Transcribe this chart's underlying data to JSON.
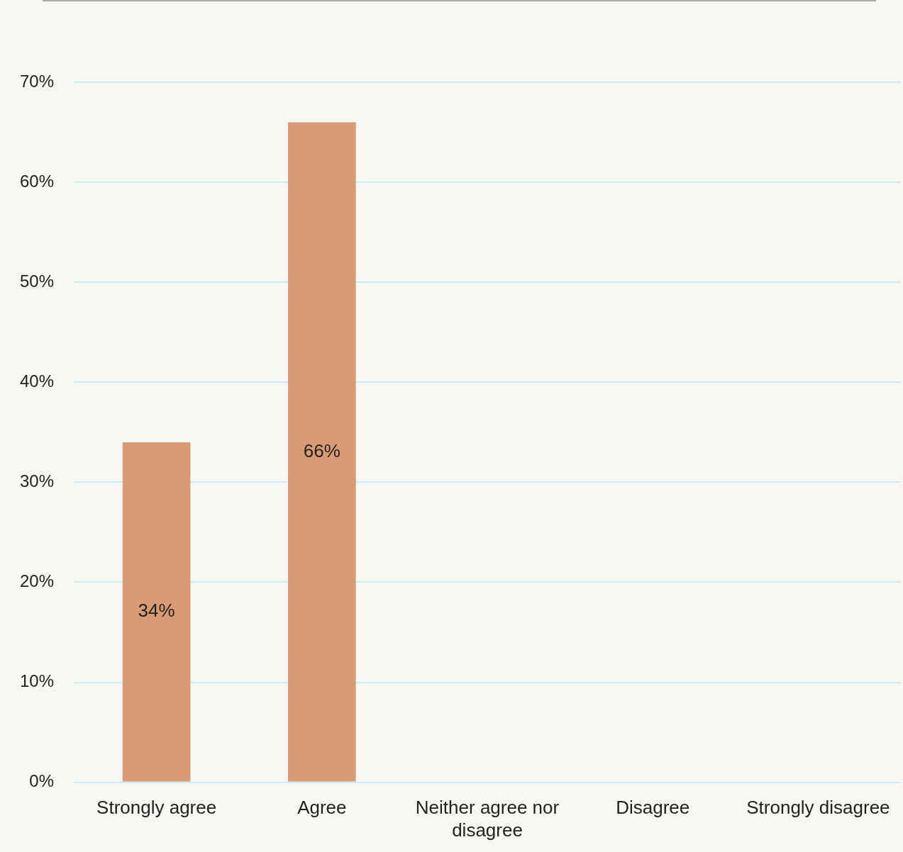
{
  "chart_data": {
    "type": "bar",
    "categories": [
      "Strongly agree",
      "Agree",
      "Neither agree nor disagree",
      "Disagree",
      "Strongly disagree"
    ],
    "values": [
      34,
      66,
      0,
      0,
      0
    ],
    "color": "#d99a74",
    "value_labels": [
      "34%",
      "66%",
      null,
      null,
      null
    ],
    "ylim": [
      0,
      70
    ],
    "yticks": [
      {
        "value": 0,
        "label": "0%"
      },
      {
        "value": 10,
        "label": "10%"
      },
      {
        "value": 20,
        "label": "20%"
      },
      {
        "value": 30,
        "label": "30%"
      },
      {
        "value": 40,
        "label": "40%"
      },
      {
        "value": 50,
        "label": "50%"
      },
      {
        "value": 60,
        "label": "60%"
      },
      {
        "value": 70,
        "label": "70%"
      }
    ],
    "grid": "y",
    "legend": false
  }
}
